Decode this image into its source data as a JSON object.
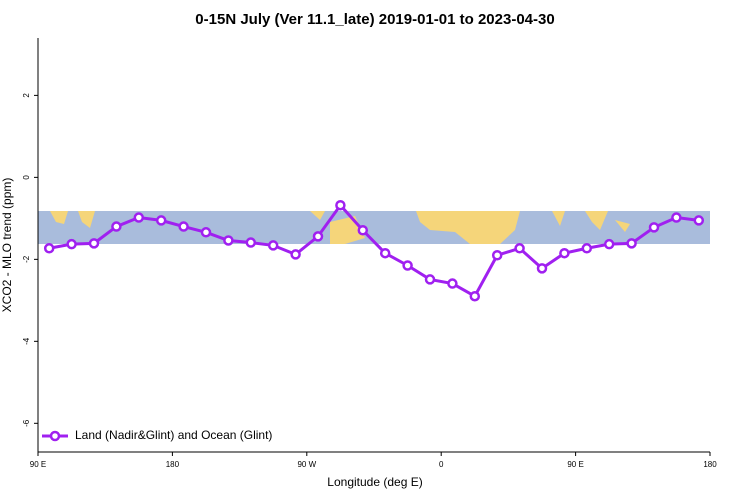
{
  "chart_data": {
    "type": "line",
    "title": "0-15N July (Ver 11.1_late)   2019-01-01 to 2023-04-30",
    "x_label": "Longitude (deg E)",
    "y_label": "XCO2 - MLO trend (ppm)",
    "x": [
      97.5,
      112.5,
      127.5,
      142.5,
      157.5,
      172.5,
      187.5,
      202.5,
      217.5,
      232.5,
      247.5,
      262.5,
      277.5,
      292.5,
      307.5,
      322.5,
      337.5,
      352.5,
      367.5,
      382.5,
      397.5,
      412.5,
      427.5,
      442.5,
      457.5,
      472.5,
      487.5,
      502.5,
      517.5,
      532.5
    ],
    "series": [
      {
        "name": "Land (Nadir&Glint) and Ocean (Glint)",
        "color": "#a020f0",
        "values": [
          -1.73,
          -1.63,
          -1.61,
          -1.2,
          -0.98,
          -1.05,
          -1.2,
          -1.34,
          -1.54,
          -1.59,
          -1.66,
          -1.88,
          -1.44,
          -0.68,
          -1.29,
          -1.85,
          -2.15,
          -2.49,
          -2.59,
          -2.9,
          -1.9,
          -1.73,
          -2.22,
          -1.85,
          -1.73,
          -1.63,
          -1.61,
          -1.22,
          -0.98,
          -1.05
        ]
      }
    ],
    "xlim": [
      90,
      540
    ],
    "ylim": [
      -6.7,
      3.4
    ],
    "xticks": [
      {
        "value": 90,
        "label": "90 E"
      },
      180,
      {
        "value": 270,
        "label": "90 W"
      },
      {
        "value": 360,
        "label": "0"
      },
      {
        "value": 450,
        "label": "90 E"
      },
      {
        "value": 540,
        "label": "180"
      }
    ],
    "yticks": [
      2,
      0,
      -2,
      -4,
      -6
    ],
    "legend": "bottom-left"
  }
}
